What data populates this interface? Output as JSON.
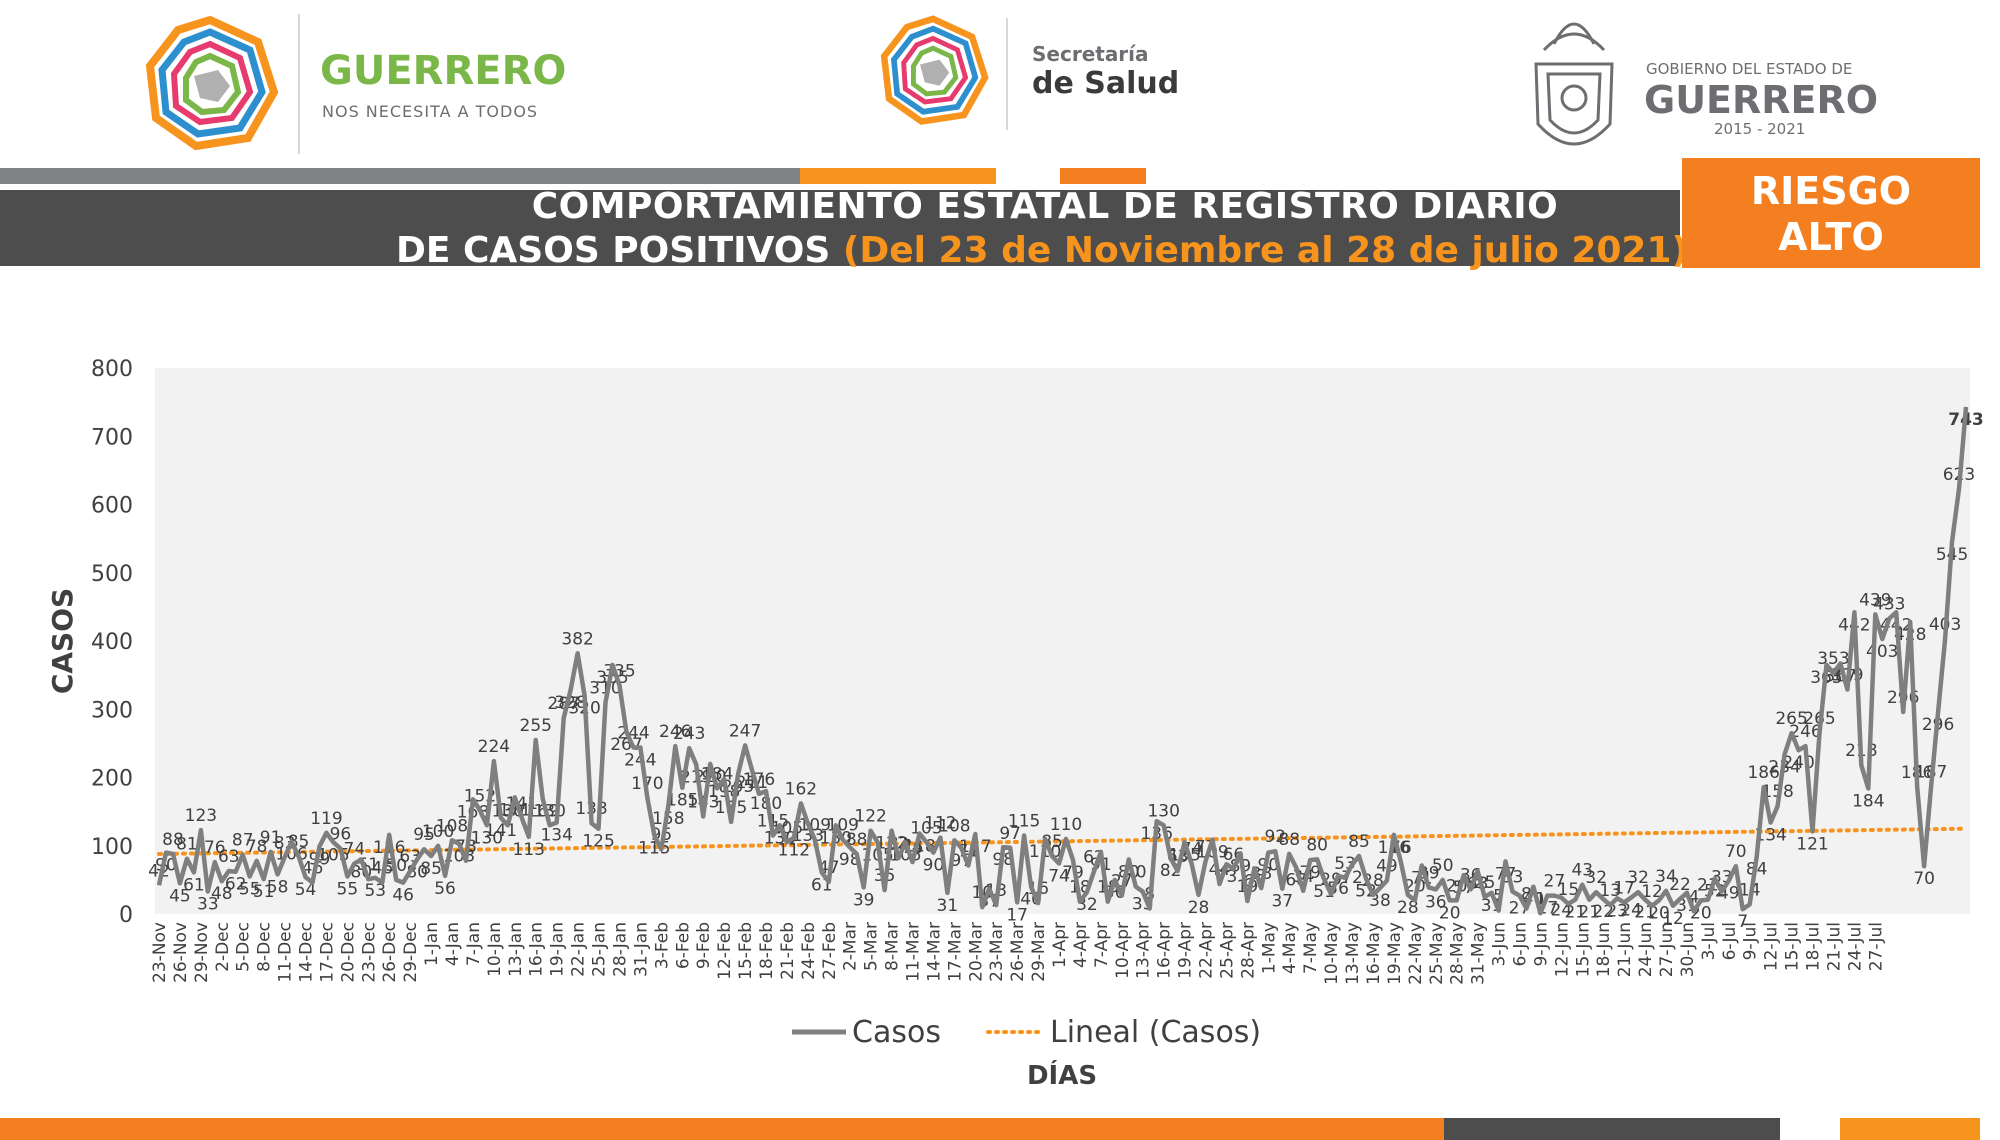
{
  "header": {
    "logo1": {
      "title": "GUERRERO",
      "tagline": "NOS NECESITA A TODOS"
    },
    "logo2": {
      "line1": "Secretaría",
      "line2": "de Salud"
    },
    "logo3": {
      "line1": "GOBIERNO DEL ESTADO DE",
      "line2": "GUERRERO",
      "line3": "2015 - 2021"
    }
  },
  "banner": {
    "title_line1": "COMPORTAMIENTO ESTATAL DE REGISTRO DIARIO",
    "title_line2": "DE CASOS POSITIVOS",
    "title_highlight": "(Del 23 de Noviembre al 28 de julio 2021)",
    "risk_line1": "RIESGO",
    "risk_line2": "ALTO"
  },
  "colors": {
    "series": "#7f7f7f",
    "trend": "#f7941d",
    "plot_bg": "#f2f2f2",
    "banner_dark": "#4d4d4d",
    "accent_orange": "#f47f20"
  },
  "chart_data": {
    "type": "line",
    "xlabel": "DÍAS",
    "ylabel": "CASOS",
    "ylim": [
      0,
      800
    ],
    "yticks": [
      0,
      100,
      200,
      300,
      400,
      500,
      600,
      700,
      800
    ],
    "grid": false,
    "legend": {
      "position": "bottom",
      "entries": [
        "Casos",
        "Lineal (Casos)"
      ]
    },
    "x_tick_labels": [
      "23-Nov",
      "26-Nov",
      "29-Nov",
      "2-Dec",
      "5-Dec",
      "8-Dec",
      "11-Dec",
      "14-Dec",
      "17-Dec",
      "20-Dec",
      "23-Dec",
      "26-Dec",
      "29-Dec",
      "1-Jan",
      "4-Jan",
      "7-Jan",
      "10-Jan",
      "13-Jan",
      "16-Jan",
      "19-Jan",
      "22-Jan",
      "25-Jan",
      "28-Jan",
      "31-Jan",
      "3-Feb",
      "6-Feb",
      "9-Feb",
      "12-Feb",
      "15-Feb",
      "18-Feb",
      "21-Feb",
      "24-Feb",
      "27-Feb",
      "2-Mar",
      "5-Mar",
      "8-Mar",
      "11-Mar",
      "14-Mar",
      "17-Mar",
      "20-Mar",
      "23-Mar",
      "26-Mar",
      "29-Mar",
      "1-Apr",
      "4-Apr",
      "7-Apr",
      "10-Apr",
      "13-Apr",
      "16-Apr",
      "19-Apr",
      "22-Apr",
      "25-Apr",
      "28-Apr",
      "1-May",
      "4-May",
      "7-May",
      "10-May",
      "13-May",
      "16-May",
      "19-May",
      "22-May",
      "25-May",
      "28-May",
      "31-May",
      "3-Jun",
      "6-Jun",
      "9-Jun",
      "12-Jun",
      "15-Jun",
      "18-Jun",
      "21-Jun",
      "24-Jun",
      "27-Jun",
      "30-Jun",
      "3-Jul",
      "6-Jul",
      "9-Jul",
      "12-Jul",
      "15-Jul",
      "18-Jul",
      "21-Jul",
      "24-Jul",
      "27-Jul"
    ],
    "trend": {
      "name": "Lineal (Casos)",
      "start": 88,
      "end": 125
    },
    "series": [
      {
        "name": "Casos",
        "values": [
          42,
          90,
          88,
          45,
          81,
          61,
          123,
          33,
          76,
          48,
          63,
          62,
          87,
          55,
          78,
          51,
          91,
          58,
          83,
          106,
          85,
          54,
          46,
          99,
          119,
          105,
          96,
          55,
          74,
          80,
          51,
          53,
          46,
          116,
          50,
          46,
          63,
          80,
          95,
          85,
          100,
          56,
          108,
          103,
          78,
          168,
          152,
          130,
          224,
          141,
          130,
          171,
          141,
          113,
          255,
          169,
          130,
          134,
          287,
          328,
          382,
          320,
          133,
          125,
          310,
          365,
          335,
          267,
          244,
          244,
          170,
          115,
          95,
          158,
          246,
          185,
          243,
          219,
          143,
          220,
          184,
          198,
          135,
          205,
          247,
          211,
          176,
          180,
          115,
          130,
          105,
          112,
          162,
          133,
          109,
          61,
          47,
          130,
          109,
          98,
          88,
          39,
          122,
          105,
          35,
          122,
          82,
          105,
          76,
          118,
          105,
          90,
          112,
          31,
          108,
          97,
          71,
          117,
          10,
          37,
          13,
          98,
          97,
          17,
          115,
          40,
          16,
          110,
          85,
          74,
          110,
          79,
          18,
          32,
          62,
          91,
          18,
          50,
          27,
          80,
          40,
          33,
          8,
          136,
          130,
          82,
          63,
          105,
          74,
          28,
          77,
          109,
          44,
          73,
          66,
          89,
          19,
          67,
          38,
          90,
          92,
          37,
          88,
          68,
          34,
          79,
          80,
          51,
          29,
          56,
          53,
          72,
          85,
          52,
          28,
          38,
          49,
          116,
          76,
          28,
          20,
          71,
          39,
          36,
          50,
          20,
          20,
          57,
          36,
          63,
          25,
          31,
          5,
          77,
          33,
          27,
          8,
          40,
          1,
          27,
          27,
          24,
          15,
          21,
          43,
          21,
          32,
          22,
          13,
          23,
          17,
          24,
          32,
          21,
          12,
          20,
          34,
          12,
          22,
          31,
          4,
          20,
          21,
          52,
          33,
          49,
          70,
          7,
          14,
          84,
          186,
          134,
          158,
          234,
          265,
          240,
          246,
          121,
          265,
          365,
          353,
          367,
          329,
          442,
          218,
          184,
          439,
          403,
          433,
          442,
          296,
          428,
          186,
          70,
          187,
          296,
          403,
          545,
          623,
          743
        ]
      }
    ]
  }
}
